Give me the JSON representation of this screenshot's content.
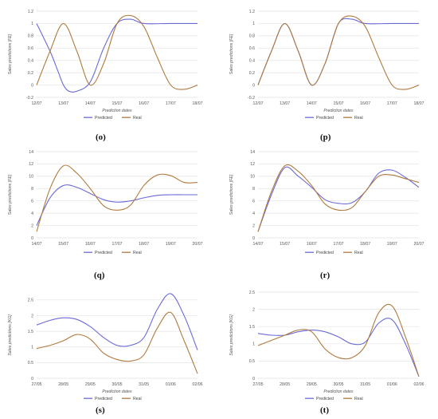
{
  "colors": {
    "predicted": "#6a6ad8",
    "real": "#b07a3e",
    "grid": "#e3e3e3"
  },
  "chart_data": [
    {
      "id": "o",
      "panel_label": "(o)",
      "type": "line",
      "xlabel": "Prediction dates",
      "ylabel": "Sales predictions [FE]",
      "xticks": [
        "12/07",
        "13/07",
        "14/07",
        "15/07",
        "16/07",
        "17/07",
        "18/07"
      ],
      "ylim": [
        -0.2,
        1.2
      ],
      "yticks": [
        "-0.2",
        "0",
        "0.2",
        "0.4",
        "0.6",
        "0.8",
        "1",
        "1.2"
      ],
      "legend": [
        "Predicted",
        "Real"
      ],
      "series": [
        {
          "name": "Predicted",
          "x": [
            0,
            0.5,
            0.8,
            1,
            1.2,
            1.5,
            2,
            2.5,
            3,
            3.5,
            4,
            5,
            6
          ],
          "y": [
            1,
            0.55,
            0.22,
            0.0,
            -0.1,
            -0.1,
            0.05,
            0.6,
            1.0,
            1.07,
            1.0,
            1.0,
            1.0
          ]
        },
        {
          "name": "Real",
          "x": [
            0,
            0.5,
            1,
            1.5,
            2,
            2.5,
            3,
            3.5,
            4,
            4.5,
            5,
            5.5,
            6
          ],
          "y": [
            0,
            0.55,
            1.0,
            0.55,
            0.0,
            0.35,
            1.0,
            1.13,
            0.95,
            0.45,
            0.0,
            -0.07,
            0.0
          ]
        }
      ]
    },
    {
      "id": "p",
      "panel_label": "(p)",
      "type": "line",
      "xlabel": "Prediction dates",
      "ylabel": "Sales predictions [FE]",
      "xticks": [
        "12/07",
        "13/07",
        "14/07",
        "15/07",
        "16/07",
        "17/07",
        "18/07"
      ],
      "ylim": [
        -0.2,
        1.2
      ],
      "yticks": [
        "-0.2",
        "0",
        "0.2",
        "0.4",
        "0.6",
        "0.8",
        "1",
        "1.2"
      ],
      "legend": [
        "Predicted",
        "Real"
      ],
      "series": [
        {
          "name": "Predicted",
          "x": [
            0,
            0.5,
            1,
            1.5,
            2,
            2.5,
            3,
            3.5,
            4,
            5,
            6
          ],
          "y": [
            0,
            0.55,
            1.0,
            0.55,
            0.0,
            0.35,
            1.0,
            1.07,
            1.0,
            1.0,
            1.0
          ]
        },
        {
          "name": "Real",
          "x": [
            0,
            0.5,
            1,
            1.5,
            2,
            2.5,
            3,
            3.5,
            4,
            4.5,
            5,
            5.5,
            6
          ],
          "y": [
            0,
            0.55,
            1.0,
            0.55,
            0.0,
            0.35,
            1.0,
            1.12,
            0.95,
            0.45,
            0.0,
            -0.07,
            0.0
          ]
        }
      ]
    },
    {
      "id": "q",
      "panel_label": "(q)",
      "type": "line",
      "xlabel": "",
      "ylabel": "Sales predictions [FE]",
      "xticks": [
        "14/07",
        "15/07",
        "16/07",
        "17/07",
        "18/07",
        "19/07",
        "20/07"
      ],
      "ylim": [
        0,
        14
      ],
      "yticks": [
        "0",
        "2",
        "4",
        "6",
        "8",
        "10",
        "12",
        "14"
      ],
      "legend": [
        "Predicted",
        "Real"
      ],
      "series": [
        {
          "name": "Predicted",
          "x": [
            0,
            0.5,
            1,
            1.5,
            2,
            2.5,
            3,
            3.5,
            4,
            4.5,
            5,
            5.5,
            6
          ],
          "y": [
            2,
            6.5,
            8.5,
            8.2,
            7.2,
            6.2,
            5.8,
            6.0,
            6.5,
            6.9,
            7.0,
            7.0,
            7.0
          ]
        },
        {
          "name": "Real",
          "x": [
            0,
            0.5,
            1,
            1.5,
            2,
            2.5,
            3,
            3.5,
            4,
            4.5,
            5,
            5.5,
            6
          ],
          "y": [
            1,
            8.0,
            11.7,
            10.5,
            8.0,
            5.2,
            4.5,
            5.3,
            8.5,
            10.2,
            10.1,
            9.0,
            9.0
          ]
        }
      ]
    },
    {
      "id": "r",
      "panel_label": "(r)",
      "type": "line",
      "xlabel": "",
      "ylabel": "Sales predictions [FE]",
      "xticks": [
        "14/07",
        "15/07",
        "16/07",
        "17/07",
        "18/07",
        "19/07",
        "20/07"
      ],
      "ylim": [
        0,
        14
      ],
      "yticks": [
        "0",
        "2",
        "4",
        "6",
        "8",
        "10",
        "12",
        "14"
      ],
      "legend": [
        "Predicted",
        "Real"
      ],
      "series": [
        {
          "name": "Predicted",
          "x": [
            0,
            0.5,
            1,
            1.5,
            2,
            2.5,
            3,
            3.5,
            4,
            4.5,
            5,
            5.5,
            6
          ],
          "y": [
            1,
            7.0,
            11.4,
            10.0,
            8.2,
            6.2,
            5.6,
            5.7,
            7.5,
            10.5,
            11.0,
            9.8,
            8.2
          ]
        },
        {
          "name": "Real",
          "x": [
            0,
            0.5,
            1,
            1.5,
            2,
            2.5,
            3,
            3.5,
            4,
            4.5,
            5,
            5.5,
            6
          ],
          "y": [
            1,
            7.5,
            11.7,
            10.8,
            8.5,
            5.5,
            4.5,
            4.9,
            7.5,
            10.0,
            10.2,
            9.6,
            9.0
          ]
        }
      ]
    },
    {
      "id": "s",
      "panel_label": "(s)",
      "type": "line",
      "xlabel": "Prediction dates",
      "ylabel": "Sales predictions [KG]",
      "xticks": [
        "27/05",
        "28/05",
        "29/05",
        "30/05",
        "31/05",
        "01/06",
        "02/06"
      ],
      "ylim": [
        0,
        2.75
      ],
      "yticks": [
        "0",
        "0.5",
        "1",
        "1.5",
        "2",
        "2.5"
      ],
      "legend": [
        "Predicted",
        "Real"
      ],
      "series": [
        {
          "name": "Predicted",
          "x": [
            0,
            0.5,
            1,
            1.5,
            2,
            2.5,
            3,
            3.5,
            4,
            4.5,
            5,
            5.5,
            6
          ],
          "y": [
            1.7,
            1.85,
            1.93,
            1.88,
            1.65,
            1.3,
            1.05,
            1.05,
            1.3,
            2.2,
            2.7,
            2.0,
            0.9
          ]
        },
        {
          "name": "Real",
          "x": [
            0,
            0.5,
            1,
            1.5,
            2,
            2.5,
            3,
            3.5,
            4,
            4.5,
            5,
            5.5,
            6
          ],
          "y": [
            0.95,
            1.05,
            1.2,
            1.4,
            1.25,
            0.8,
            0.6,
            0.55,
            0.75,
            1.6,
            2.1,
            1.2,
            0.15
          ]
        }
      ]
    },
    {
      "id": "t",
      "panel_label": "(t)",
      "type": "line",
      "xlabel": "Prediction dates",
      "ylabel": "Sales predictions [KG]",
      "xticks": [
        "27/05",
        "28/05",
        "29/05",
        "30/05",
        "31/05",
        "01/06",
        "02/06"
      ],
      "ylim": [
        0,
        2.5
      ],
      "yticks": [
        "0",
        "0.5",
        "1",
        "1.5",
        "2",
        "2.5"
      ],
      "legend": [
        "Predicted",
        "Real"
      ],
      "series": [
        {
          "name": "Predicted",
          "x": [
            0,
            0.5,
            1,
            1.5,
            2,
            2.5,
            3,
            3.5,
            4,
            4.5,
            5,
            5.5,
            6
          ],
          "y": [
            1.3,
            1.25,
            1.25,
            1.35,
            1.4,
            1.35,
            1.2,
            1.0,
            1.05,
            1.6,
            1.7,
            1.0,
            0.05
          ]
        },
        {
          "name": "Real",
          "x": [
            0,
            0.5,
            1,
            1.5,
            2,
            2.5,
            3,
            3.5,
            4,
            4.5,
            5,
            5.5,
            6
          ],
          "y": [
            0.95,
            1.1,
            1.25,
            1.4,
            1.35,
            0.85,
            0.6,
            0.6,
            0.95,
            1.9,
            2.1,
            1.2,
            0.05
          ]
        }
      ]
    }
  ]
}
